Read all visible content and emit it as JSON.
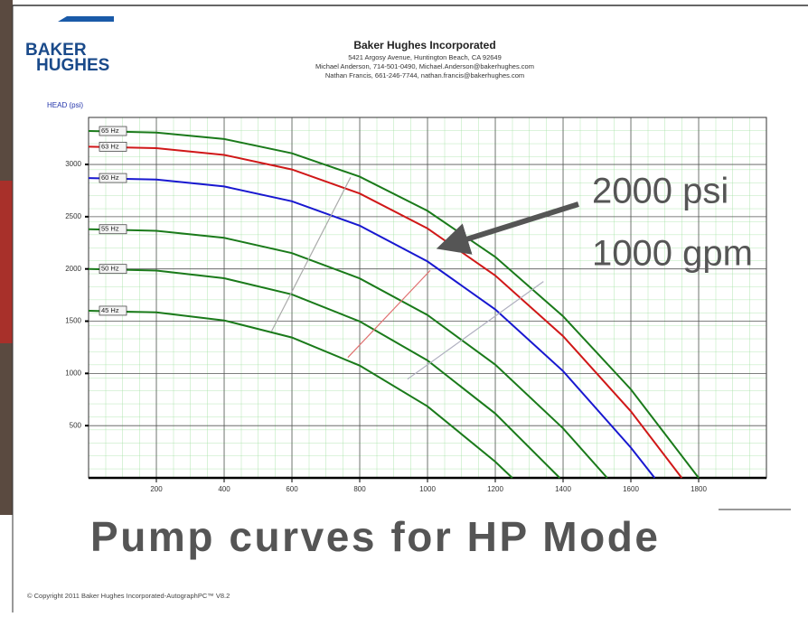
{
  "header": {
    "logo_top": "BAKER",
    "logo_bottom": "HUGHES",
    "company": "Baker Hughes Incorporated",
    "address": "5421 Argosy Avenue, Huntington Beach, CA 92649",
    "contact_1": "Michael Anderson, 714-501-0490, Michael.Anderson@bakerhughes.com",
    "contact_2": "Nathan Francis, 661-246-7744, nathan.francis@bakerhughes.com"
  },
  "chart_data": {
    "type": "line",
    "ylabel": "HEAD (psi)",
    "xlim": [
      0,
      2000
    ],
    "ylim": [
      0,
      3450
    ],
    "xticks": [
      200,
      400,
      600,
      800,
      1000,
      1200,
      1400,
      1600,
      1800
    ],
    "yticks": [
      500,
      1000,
      1500,
      2000,
      2500,
      3000
    ],
    "grid": true,
    "series": [
      {
        "name": "65 Hz",
        "color": "#1a7a1a",
        "x": [
          0,
          200,
          400,
          600,
          800,
          1000,
          1200,
          1400,
          1600,
          1800
        ],
        "values": [
          3320,
          3306,
          3243,
          3107,
          2883,
          2556,
          2115,
          1547,
          847,
          0
        ]
      },
      {
        "name": "63 Hz",
        "color": "#d01818",
        "x": [
          0,
          200,
          400,
          600,
          800,
          1000,
          1200,
          1400,
          1600,
          1750
        ],
        "values": [
          3170,
          3156,
          3091,
          2952,
          2722,
          2387,
          1937,
          1357,
          637,
          0
        ]
      },
      {
        "name": "60 Hz",
        "color": "#1818d0",
        "x": [
          0,
          200,
          400,
          600,
          800,
          1000,
          1200,
          1400,
          1600,
          1670
        ],
        "values": [
          2870,
          2856,
          2789,
          2648,
          2414,
          2072,
          1613,
          1022,
          290,
          0
        ]
      },
      {
        "name": "55 Hz",
        "color": "#1a7a1a",
        "x": [
          0,
          200,
          400,
          600,
          800,
          1000,
          1200,
          1400,
          1530
        ],
        "values": [
          2380,
          2365,
          2297,
          2151,
          1909,
          1559,
          1083,
          474,
          0
        ]
      },
      {
        "name": "50 Hz",
        "color": "#1a7a1a",
        "x": [
          0,
          200,
          400,
          600,
          800,
          1000,
          1200,
          1390
        ],
        "values": [
          2000,
          1984,
          1911,
          1756,
          1498,
          1124,
          616,
          0
        ]
      },
      {
        "name": "45 Hz",
        "color": "#1a7a1a",
        "x": [
          0,
          200,
          400,
          600,
          800,
          1000,
          1200,
          1250
        ],
        "values": [
          1600,
          1584,
          1507,
          1344,
          1075,
          685,
          155,
          0
        ]
      },
      {
        "color": "#aaaaaa",
        "x": [
          540,
          773
        ],
        "values": [
          1404,
          2877
        ]
      },
      {
        "color": "#e07070",
        "x": [
          765,
          1008
        ],
        "values": [
          1153,
          1985
        ]
      },
      {
        "color": "#b0b0c0",
        "x": [
          941,
          1342
        ],
        "values": [
          945,
          1880
        ]
      }
    ]
  },
  "annotation": {
    "line_1": "2000 psi",
    "line_2": "1000 gpm"
  },
  "slide_title": "Pump curves for HP Mode",
  "footer": "© Copyright 2011 Baker Hughes Incorporated-AutographPC™ V8.2"
}
